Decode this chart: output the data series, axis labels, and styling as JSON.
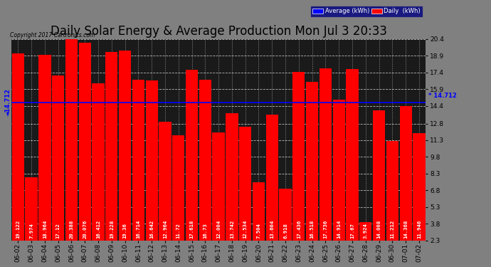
{
  "title": "Daily Solar Energy & Average Production Mon Jul 3 20:33",
  "copyright": "Copyright 2017 Cartronics.com",
  "average_label": "Average (kWh)",
  "daily_label": "Daily  (kWh)",
  "average_value": 14.712,
  "categories": [
    "06-02",
    "06-03",
    "06-04",
    "06-05",
    "06-06",
    "06-07",
    "06-08",
    "06-09",
    "06-10",
    "06-11",
    "06-12",
    "06-13",
    "06-14",
    "06-15",
    "06-16",
    "06-17",
    "06-18",
    "06-19",
    "06-20",
    "06-21",
    "06-22",
    "06-23",
    "06-24",
    "06-25",
    "06-26",
    "06-27",
    "06-28",
    "06-29",
    "06-30",
    "07-01",
    "07-02"
  ],
  "values": [
    19.122,
    7.974,
    18.964,
    17.12,
    20.388,
    20.076,
    16.412,
    19.228,
    19.36,
    16.714,
    16.642,
    12.964,
    11.72,
    17.618,
    16.73,
    12.004,
    13.742,
    12.534,
    7.504,
    13.604,
    6.918,
    17.436,
    16.518,
    17.736,
    14.914,
    17.67,
    3.924,
    14.008,
    11.212,
    14.368,
    11.946
  ],
  "bar_color": "#ff0000",
  "avg_line_color": "#0000ff",
  "bg_color": "#808080",
  "plot_bg_color": "#1a1a1a",
  "text_color": "#000000",
  "ymin": 2.3,
  "ymax": 20.4,
  "yticks": [
    2.3,
    3.8,
    5.3,
    6.8,
    8.3,
    9.8,
    11.3,
    12.8,
    14.4,
    15.9,
    17.4,
    18.9,
    20.4
  ],
  "title_fontsize": 12,
  "tick_fontsize": 6.5,
  "bar_label_fontsize": 5.2,
  "avg_fontsize": 6.5,
  "legend_avg_bg": "#0000ff",
  "legend_daily_bg": "#ff0000",
  "legend_text_color": "#ffffff"
}
